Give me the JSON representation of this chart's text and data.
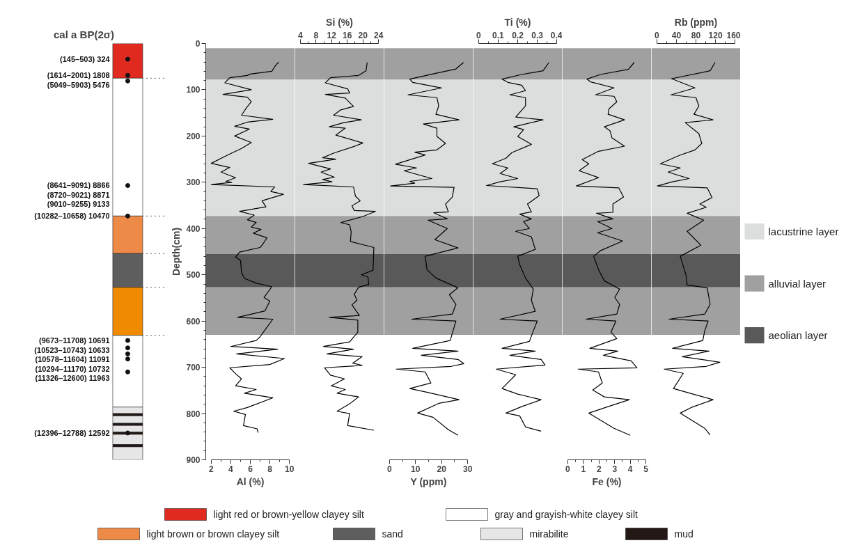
{
  "chart_data": [
    {
      "type": "bar",
      "title": "cal a BP(2σ)",
      "stacked": true,
      "categories": [
        null
      ],
      "ylim": [
        900,
        0
      ],
      "tick_labels": false,
      "legend": "bottom",
      "series": [
        {
          "name": "light red or brown-yellow clayey silt",
          "color": "#e02a20",
          "values": [
            75
          ]
        },
        {
          "name": "gray and grayish-white clayey silt",
          "color": "#ffffff",
          "values": [
            298
          ]
        },
        {
          "name": "light brown or brown clayey silt",
          "color": "#ee8a48",
          "values": [
            81
          ]
        },
        {
          "name": "sand",
          "color": "#5e5e5e",
          "values": [
            73
          ]
        },
        {
          "color": "#f08a00",
          "values": [
            104
          ]
        },
        {
          "color": "#ffffff",
          "values": [
            155
          ]
        },
        {
          "name": "mirabilite",
          "color": "#e6e6e6",
          "values": [
            14
          ]
        },
        {
          "name": "mud",
          "color": "#231815",
          "values": [
            5
          ]
        },
        {
          "color": "#e6e6e6",
          "values": [
            16
          ]
        },
        {
          "color": "#231815",
          "values": [
            5
          ]
        },
        {
          "color": "#e6e6e6",
          "values": [
            14
          ]
        },
        {
          "color": "#231815",
          "values": [
            5
          ]
        },
        {
          "color": "#e6e6e6",
          "values": [
            22
          ]
        },
        {
          "color": "#231815",
          "values": [
            5
          ]
        },
        {
          "color": "#e6e6e6",
          "values": [
            28
          ]
        },
        {
          "type": "scatter",
          "marker": "circle",
          "color": "#111111",
          "x": [
            null,
            null,
            null,
            null,
            null,
            null,
            null,
            null,
            null,
            null,
            null,
            null,
            null
          ],
          "values": [
            34,
            69,
            81,
            307,
            null,
            null,
            373,
            642,
            658,
            671,
            682,
            710,
            842
          ]
        }
      ],
      "ref_lines": [
        {
          "axis": "y",
          "value": 75,
          "line_style": "dotted"
        },
        {
          "axis": "y",
          "value": 373,
          "line_style": "dotted"
        },
        {
          "axis": "y",
          "value": 454,
          "line_style": "dotted"
        },
        {
          "axis": "y",
          "value": 527,
          "line_style": "dotted"
        },
        {
          "axis": "y",
          "value": 631,
          "line_style": "dotted"
        }
      ],
      "annotations": [
        "(145–503) 324",
        "(1614–2001) 1808",
        "(5049–5903) 5476",
        "(8641–9091) 8866",
        "(8720–9021) 8871",
        "(9010–9255) 9133",
        "(10282–10658) 10470",
        "(9673–11708) 10691",
        "(10523–10743) 10633",
        "(10578–11604) 11091",
        "(10294–11170) 10732",
        "(11326–12600) 11963",
        "(12396–12788) 12592"
      ]
    },
    {
      "type": "line",
      "orientation": "horizontal",
      "ylabel": "Depth(cm)",
      "ylim": [
        900,
        0
      ],
      "yticks": [
        0,
        {
          "value": 20,
          "label": null
        },
        {
          "value": 40,
          "label": null
        },
        {
          "value": 60,
          "label": null
        },
        {
          "value": 80,
          "label": null
        },
        100,
        {
          "value": 120,
          "label": null
        },
        {
          "value": 140,
          "label": null
        },
        {
          "value": 160,
          "label": null
        },
        {
          "value": 180,
          "label": null
        },
        200,
        {
          "value": 220,
          "label": null
        },
        {
          "value": 240,
          "label": null
        },
        {
          "value": 260,
          "label": null
        },
        {
          "value": 280,
          "label": null
        },
        300,
        {
          "value": 320,
          "label": null
        },
        {
          "value": 340,
          "label": null
        },
        {
          "value": 360,
          "label": null
        },
        {
          "value": 380,
          "label": null
        },
        400,
        {
          "value": 420,
          "label": null
        },
        {
          "value": 440,
          "label": null
        },
        {
          "value": 460,
          "label": null
        },
        {
          "value": 480,
          "label": null
        },
        500,
        {
          "value": 520,
          "label": null
        },
        {
          "value": 540,
          "label": null
        },
        {
          "value": 560,
          "label": null
        },
        {
          "value": 580,
          "label": null
        },
        600,
        {
          "value": 620,
          "label": null
        },
        {
          "value": 640,
          "label": null
        },
        {
          "value": 660,
          "label": null
        },
        {
          "value": 680,
          "label": null
        },
        700,
        {
          "value": 720,
          "label": null
        },
        {
          "value": 740,
          "label": null
        },
        {
          "value": 760,
          "label": null
        },
        {
          "value": 780,
          "label": null
        },
        800,
        {
          "value": 820,
          "label": null
        },
        {
          "value": 840,
          "label": null
        },
        {
          "value": 860,
          "label": null
        },
        {
          "value": 880,
          "label": null
        },
        900
      ],
      "xlabel": "Al (%)",
      "xlim": [
        2,
        10
      ],
      "xticks": [
        2,
        {
          "value": 3,
          "label": null
        },
        4,
        {
          "value": 5,
          "label": null
        },
        6,
        {
          "value": 7,
          "label": null
        },
        8,
        {
          "value": 9,
          "label": null
        },
        10
      ],
      "bands": [
        {
          "axis": "y",
          "from": 78,
          "to": 373,
          "color": "#dcdddd"
        },
        {
          "axis": "y",
          "from": 10,
          "to": 78,
          "color": "#a0a0a0"
        },
        {
          "axis": "y",
          "from": 373,
          "to": 455,
          "color": "#a0a0a0"
        },
        {
          "axis": "y",
          "from": 455,
          "to": 527,
          "color": "#595959"
        },
        {
          "axis": "y",
          "from": 527,
          "to": 630,
          "color": "#a0a0a0"
        }
      ],
      "series": [
        {
          "color": "#000000",
          "x": [
            40,
            50,
            60,
            66,
            69,
            74,
            85,
            100,
            110,
            116,
            126,
            139,
            155,
            164,
            170,
            179,
            185,
            200,
            214,
            227,
            242,
            259,
            268,
            278,
            290,
            298,
            300,
            305,
            310,
            320,
            326,
            340,
            353,
            363,
            371,
            381,
            387,
            397,
            402,
            410,
            420,
            433,
            441,
            451,
            462,
            469,
            495,
            508,
            518,
            526,
            549,
            557,
            578,
            592,
            596,
            622,
            634,
            642,
            655,
            661,
            671,
            681,
            694,
            701,
            712,
            725,
            740,
            748,
            756,
            766,
            787,
            795,
            802,
            826,
            833,
            841
          ],
          "values": [
            8.9,
            8.5,
            8.2,
            6.0,
            5.7,
            3.9,
            3.4,
            6.1,
            3.2,
            5.7,
            6.1,
            5.6,
            5.1,
            8.3,
            5.7,
            4.4,
            5.9,
            4.4,
            6.1,
            5.1,
            3.6,
            2.0,
            3.9,
            3.0,
            4.5,
            3.5,
            4.1,
            2.0,
            8.5,
            8.1,
            9.4,
            7.2,
            7.6,
            4.9,
            6.4,
            5.7,
            6.6,
            6.1,
            7.1,
            6.3,
            7.7,
            7.3,
            7.0,
            4.9,
            4.5,
            5.0,
            5.1,
            5.4,
            6.6,
            8.2,
            7.4,
            8.0,
            7.5,
            4.7,
            8.3,
            7.4,
            7.0,
            6.6,
            4.0,
            8.8,
            4.6,
            9.5,
            8.0,
            3.9,
            4.4,
            5.1,
            4.5,
            6.6,
            5.4,
            8.3,
            5.7,
            4.3,
            5.5,
            5.3,
            6.7,
            6.8
          ]
        }
      ]
    },
    {
      "type": "line",
      "orientation": "horizontal",
      "ylim": [
        900,
        0
      ],
      "tick_labels": "x",
      "x2label": "Si (%)",
      "x2lim": [
        4,
        24
      ],
      "x2ticks": [
        4,
        {
          "value": 6,
          "label": null
        },
        8,
        {
          "value": 10,
          "label": null
        },
        12,
        {
          "value": 14,
          "label": null
        },
        16,
        {
          "value": 18,
          "label": null
        },
        20,
        {
          "value": 22,
          "label": null
        },
        24
      ],
      "bands": [
        {
          "axis": "y",
          "from": 78,
          "to": 373,
          "color": "#dcdddd"
        },
        {
          "axis": "y",
          "from": 10,
          "to": 78,
          "color": "#a0a0a0"
        },
        {
          "axis": "y",
          "from": 373,
          "to": 455,
          "color": "#a0a0a0"
        },
        {
          "axis": "y",
          "from": 455,
          "to": 527,
          "color": "#595959"
        },
        {
          "axis": "y",
          "from": 527,
          "to": 630,
          "color": "#a0a0a0"
        }
      ],
      "series": [
        {
          "axis": "x2",
          "color": "#000000",
          "x": [
            41,
            59,
            69,
            74,
            85,
            98,
            107,
            110,
            118,
            136,
            144,
            155,
            165,
            171,
            180,
            183,
            198,
            215,
            223,
            237,
            247,
            250,
            259,
            271,
            278,
            289,
            294,
            299,
            305,
            310,
            330,
            340,
            351,
            361,
            363,
            374,
            387,
            392,
            407,
            428,
            441,
            490,
            500,
            505,
            521,
            527,
            542,
            555,
            565,
            588,
            592,
            598,
            624,
            645,
            655,
            661,
            671,
            677,
            691,
            696,
            701,
            717,
            725,
            740,
            748,
            756,
            764,
            779,
            795,
            800,
            826,
            836
          ],
          "values": [
            21.1,
            20.8,
            18.9,
            11.7,
            10.4,
            16.1,
            16.6,
            10.4,
            15.5,
            17.6,
            14.2,
            12.5,
            19.6,
            15.1,
            11.4,
            15.5,
            13.1,
            20.0,
            17.6,
            12.5,
            9.7,
            13.1,
            6.1,
            11.7,
            9.3,
            12.7,
            9.7,
            12.1,
            4.8,
            17.6,
            18.1,
            19.3,
            17.2,
            17.8,
            23.2,
            20.0,
            14.4,
            16.6,
            17.0,
            16.8,
            22.8,
            22.6,
            19.6,
            21.3,
            21.5,
            18.9,
            17.8,
            18.5,
            17.2,
            19.1,
            11.4,
            18.7,
            18.7,
            16.6,
            9.9,
            17.6,
            10.8,
            19.8,
            17.4,
            19.8,
            10.2,
            11.7,
            15.3,
            11.9,
            15.5,
            13.4,
            18.9,
            16.6,
            13.4,
            16.6,
            16.1,
            22.8
          ]
        }
      ]
    },
    {
      "type": "line",
      "orientation": "horizontal",
      "ylim": [
        900,
        0
      ],
      "tick_labels": "x",
      "xlabel": "Y (ppm)",
      "xlim": [
        0,
        30
      ],
      "xticks": [
        0,
        {
          "value": 5,
          "label": null
        },
        10,
        {
          "value": 15,
          "label": null
        },
        20,
        {
          "value": 25,
          "label": null
        },
        30
      ],
      "bands": [
        {
          "axis": "y",
          "from": 78,
          "to": 373,
          "color": "#dcdddd"
        },
        {
          "axis": "y",
          "from": 10,
          "to": 78,
          "color": "#a0a0a0"
        },
        {
          "axis": "y",
          "from": 373,
          "to": 455,
          "color": "#a0a0a0"
        },
        {
          "axis": "y",
          "from": 455,
          "to": 527,
          "color": "#595959"
        },
        {
          "axis": "y",
          "from": 527,
          "to": 630,
          "color": "#a0a0a0"
        }
      ],
      "series": [
        {
          "color": "#000000",
          "x": [
            41,
            55,
            65,
            77,
            84,
            96,
            111,
            117,
            135,
            153,
            165,
            174,
            183,
            201,
            216,
            230,
            235,
            241,
            261,
            269,
            275,
            292,
            298,
            302,
            308,
            311,
            332,
            347,
            364,
            366,
            379,
            382,
            400,
            424,
            442,
            460,
            489,
            507,
            528,
            543,
            564,
            585,
            596,
            600,
            621,
            642,
            659,
            665,
            674,
            683,
            692,
            698,
            704,
            710,
            734,
            746,
            755,
            770,
            778,
            799,
            808,
            835,
            847
          ],
          "values": [
            28.4,
            25.5,
            17.4,
            7.8,
            8.9,
            20.0,
            7.1,
            18.2,
            18.9,
            17.8,
            26.7,
            13.0,
            18.2,
            18.2,
            21.5,
            18.2,
            9.7,
            13.7,
            2.3,
            10.4,
            5.6,
            16.3,
            7.8,
            9.7,
            0.4,
            24.8,
            24.1,
            21.5,
            22.6,
            17.0,
            22.2,
            14.8,
            22.2,
            17.4,
            26.3,
            13.7,
            14.4,
            17.8,
            26.3,
            23.0,
            25.5,
            24.1,
            8.5,
            25.5,
            24.4,
            23.3,
            8.9,
            26.3,
            12.2,
            26.3,
            28.5,
            23.7,
            2.6,
            13.7,
            15.9,
            7.8,
            15.2,
            26.7,
            18.9,
            10.8,
            16.7,
            22.6,
            26.3
          ]
        }
      ]
    },
    {
      "type": "line",
      "orientation": "horizontal",
      "ylim": [
        900,
        0
      ],
      "tick_labels": "x",
      "x2label": "Ti (%)",
      "x2lim": [
        0,
        0.4
      ],
      "x2ticks": [
        0,
        {
          "value": 0.05,
          "label": null
        },
        0.1,
        {
          "value": 0.15,
          "label": null
        },
        0.2,
        {
          "value": 0.25,
          "label": null
        },
        0.3,
        {
          "value": 0.35,
          "label": null
        },
        0.4
      ],
      "bands": [
        {
          "axis": "y",
          "from": 78,
          "to": 373,
          "color": "#dcdddd"
        },
        {
          "axis": "y",
          "from": 10,
          "to": 78,
          "color": "#a0a0a0"
        },
        {
          "axis": "y",
          "from": 373,
          "to": 455,
          "color": "#a0a0a0"
        },
        {
          "axis": "y",
          "from": 455,
          "to": 527,
          "color": "#595959"
        },
        {
          "axis": "y",
          "from": 527,
          "to": 630,
          "color": "#a0a0a0"
        }
      ],
      "series": [
        {
          "axis": "x2",
          "color": "#000000",
          "x": [
            41,
            59,
            67,
            77,
            84,
            90,
            102,
            111,
            117,
            135,
            159,
            165,
            180,
            186,
            201,
            218,
            236,
            248,
            260,
            269,
            281,
            292,
            299,
            307,
            314,
            329,
            347,
            364,
            369,
            379,
            385,
            400,
            406,
            418,
            445,
            460,
            478,
            507,
            531,
            555,
            579,
            596,
            600,
            621,
            644,
            659,
            665,
            674,
            683,
            695,
            704,
            716,
            746,
            758,
            770,
            785,
            799,
            805,
            829,
            838
          ],
          "values": [
            0.36,
            0.33,
            0.22,
            0.12,
            0.15,
            0.22,
            0.24,
            0.16,
            0.24,
            0.24,
            0.19,
            0.33,
            0.18,
            0.23,
            0.2,
            0.27,
            0.17,
            0.14,
            0.07,
            0.15,
            0.11,
            0.2,
            0.11,
            0.04,
            0.3,
            0.31,
            0.25,
            0.27,
            0.21,
            0.27,
            0.23,
            0.26,
            0.19,
            0.27,
            0.29,
            0.2,
            0.21,
            0.24,
            0.28,
            0.27,
            0.29,
            0.11,
            0.3,
            0.28,
            0.26,
            0.12,
            0.29,
            0.16,
            0.32,
            0.34,
            0.09,
            0.19,
            0.12,
            0.2,
            0.32,
            0.22,
            0.14,
            0.21,
            0.24,
            0.32
          ]
        }
      ]
    },
    {
      "type": "line",
      "orientation": "horizontal",
      "ylim": [
        900,
        0
      ],
      "tick_labels": "x",
      "xlabel": "Fe (%)",
      "xlim": [
        0,
        5
      ],
      "xticks": [
        0,
        {
          "value": 0.5,
          "label": null
        },
        1,
        {
          "value": 1.5,
          "label": null
        },
        2,
        {
          "value": 2.5,
          "label": null
        },
        3,
        {
          "value": 3.5,
          "label": null
        },
        4,
        {
          "value": 4.5,
          "label": null
        },
        5
      ],
      "bands": [
        {
          "axis": "y",
          "from": 78,
          "to": 373,
          "color": "#dcdddd"
        },
        {
          "axis": "y",
          "from": 10,
          "to": 78,
          "color": "#a0a0a0"
        },
        {
          "axis": "y",
          "from": 373,
          "to": 455,
          "color": "#a0a0a0"
        },
        {
          "axis": "y",
          "from": 455,
          "to": 527,
          "color": "#595959"
        },
        {
          "axis": "y",
          "from": 527,
          "to": 630,
          "color": "#a0a0a0"
        }
      ],
      "series": [
        {
          "color": "#000000",
          "x": [
            41,
            56,
            67,
            77,
            83,
            96,
            111,
            114,
            126,
            141,
            153,
            165,
            180,
            189,
            204,
            222,
            233,
            251,
            260,
            275,
            290,
            308,
            312,
            332,
            347,
            365,
            367,
            379,
            385,
            400,
            409,
            427,
            448,
            460,
            489,
            513,
            531,
            549,
            564,
            585,
            596,
            600,
            624,
            638,
            659,
            665,
            674,
            686,
            701,
            704,
            710,
            734,
            749,
            764,
            770,
            785,
            799,
            832,
            847
          ],
          "values": [
            4.25,
            3.88,
            2.09,
            1.23,
            1.47,
            2.96,
            1.78,
            2.96,
            3.14,
            2.64,
            2.58,
            3.63,
            2.34,
            2.71,
            2.83,
            3.63,
            1.97,
            0.92,
            1.35,
            0.73,
            1.97,
            0.55,
            3.26,
            3.57,
            2.89,
            2.89,
            1.84,
            2.89,
            1.91,
            2.83,
            1.91,
            3.51,
            2.09,
            1.66,
            1.97,
            2.34,
            3.32,
            3.01,
            3.32,
            3.14,
            1.17,
            3.08,
            2.77,
            3.14,
            1.41,
            3.2,
            2.28,
            4.06,
            4.43,
            0.67,
            1.97,
            2.21,
            1.6,
            2.34,
            3.94,
            2.58,
            1.35,
            2.96,
            4.0
          ]
        }
      ]
    },
    {
      "type": "line",
      "orientation": "horizontal",
      "ylim": [
        900,
        0
      ],
      "tick_labels": "x",
      "legend": "right",
      "x2label": "Rb (ppm)",
      "x2lim": [
        0,
        160
      ],
      "x2ticks": [
        0,
        {
          "value": 20,
          "label": null
        },
        40,
        {
          "value": 60,
          "label": null
        },
        80,
        {
          "value": 100,
          "label": null
        },
        120,
        {
          "value": 140,
          "label": null
        },
        160
      ],
      "bands": [
        {
          "axis": "y",
          "from": 78,
          "to": 373,
          "label": "lacustrine layer",
          "color": "#dcdddd"
        },
        {
          "axis": "y",
          "from": 10,
          "to": 78,
          "label": "alluvial layer",
          "color": "#a0a0a0"
        },
        {
          "axis": "y",
          "from": 373,
          "to": 455,
          "color": "#a0a0a0"
        },
        {
          "axis": "y",
          "from": 455,
          "to": 527,
          "label": "aeolian layer",
          "color": "#595959"
        },
        {
          "axis": "y",
          "from": 527,
          "to": 630,
          "color": "#a0a0a0"
        }
      ],
      "series": [
        {
          "axis": "x2",
          "color": "#000000",
          "x": [
            41,
            59,
            76,
            96,
            111,
            117,
            135,
            153,
            165,
            171,
            195,
            216,
            230,
            242,
            260,
            269,
            278,
            292,
            299,
            308,
            312,
            333,
            347,
            354,
            367,
            382,
            406,
            436,
            460,
            502,
            522,
            528,
            564,
            585,
            596,
            600,
            621,
            642,
            659,
            665,
            677,
            689,
            698,
            704,
            713,
            746,
            755,
            770,
            787,
            799,
            832,
            846
          ],
          "values": [
            119,
            109,
            30,
            78,
            29,
            80,
            86,
            76,
            115,
            58,
            86,
            92,
            78,
            46,
            7,
            48,
            23,
            66,
            32,
            1,
            103,
            113,
            88,
            101,
            62,
            96,
            62,
            90,
            48,
            60,
            62,
            103,
            109,
            98,
            25,
            105,
            98,
            94,
            32,
            107,
            52,
            129,
            101,
            15,
            54,
            34,
            64,
            115,
            70,
            48,
            98,
            109
          ]
        }
      ]
    }
  ]
}
